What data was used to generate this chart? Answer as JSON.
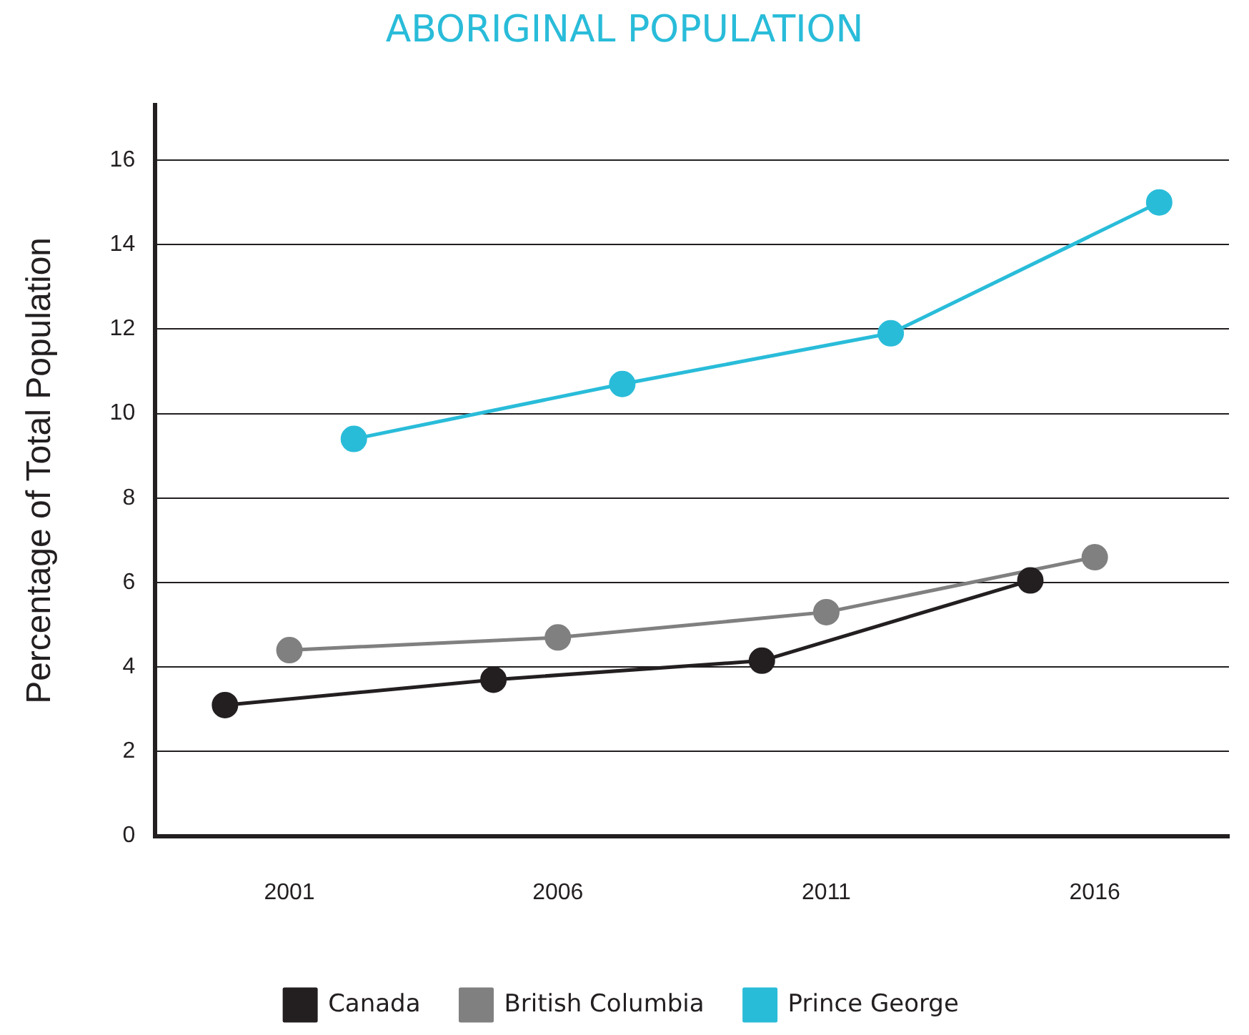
{
  "chart_data": {
    "type": "line",
    "title": "ABORIGINAL POPULATION",
    "ylabel": "Percentage of Total Population",
    "categories": [
      "2001",
      "2006",
      "2011",
      "2016"
    ],
    "series": [
      {
        "name": "Canada",
        "color": "#231f20",
        "values": [
          3.1,
          3.7,
          4.15,
          6.05
        ]
      },
      {
        "name": "British Columbia",
        "color": "#808080",
        "values": [
          4.4,
          4.7,
          5.3,
          6.6
        ]
      },
      {
        "name": "Prince George",
        "color": "#29bcd9",
        "values": [
          9.4,
          10.7,
          11.9,
          15
        ]
      }
    ],
    "ylim": [
      0,
      17.3
    ],
    "yticks": [
      0,
      2,
      4,
      6,
      8,
      10,
      12,
      14,
      16
    ],
    "grid": "y",
    "legend": "bottom",
    "marker": "circle",
    "line_style": "solid"
  }
}
